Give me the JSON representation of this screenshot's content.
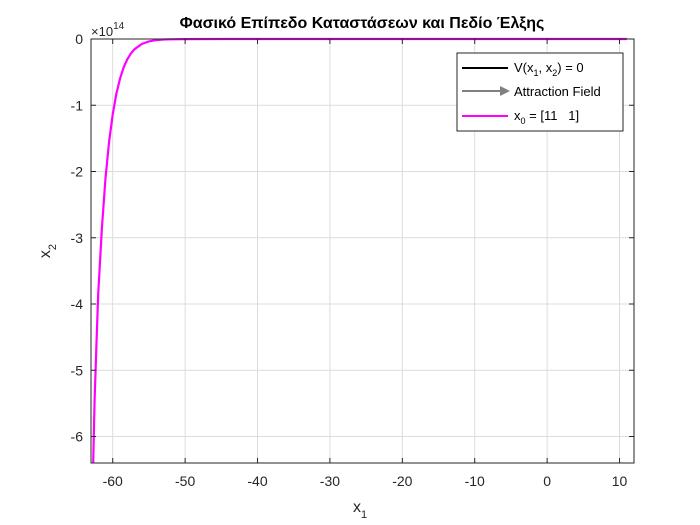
{
  "chart_data": {
    "type": "line",
    "title": "Φασικό Επίπεδο Καταστάσεων και Πεδίο Έλξης",
    "xlabel": {
      "base": "x",
      "sub": "1"
    },
    "ylabel": {
      "base": "x",
      "sub": "2"
    },
    "xlim": [
      -63,
      12
    ],
    "ylim": [
      -6.4,
      0
    ],
    "y_exponent": {
      "base": "×10",
      "power": "14"
    },
    "xticks": [
      -60,
      -50,
      -40,
      -30,
      -20,
      -10,
      0,
      10
    ],
    "xtick_labels": [
      "-60",
      "-50",
      "-40",
      "-30",
      "-20",
      "-10",
      "0",
      "10"
    ],
    "yticks": [
      -6,
      -5,
      -4,
      -3,
      -2,
      -1,
      0
    ],
    "ytick_labels": [
      "-6",
      "-5",
      "-4",
      "-3",
      "-2",
      "-1",
      "0"
    ],
    "grid": true,
    "legend_position": "top-right",
    "legend": [
      {
        "label_parts": [
          "V(x",
          "1",
          ", x",
          "2",
          ") = 0"
        ],
        "color": "#000000",
        "style": "line"
      },
      {
        "label_parts": [
          "Attraction Field"
        ],
        "color": "#808080",
        "style": "arrow"
      },
      {
        "label_parts": [
          "x",
          "0",
          " = [11   1]"
        ],
        "color": "#ff00ff",
        "style": "line"
      }
    ],
    "series": [
      {
        "name": "x0 = [11 1]",
        "color": "#ff00ff",
        "x": [
          -62.7,
          -62.5,
          -62.2,
          -62.0,
          -61.5,
          -61.0,
          -60.5,
          -60.0,
          -59.5,
          -59.0,
          -58.5,
          -58.0,
          -57.5,
          -57.0,
          -56.0,
          -55.0,
          -54.0,
          -53.0,
          -52.0,
          -50.0,
          -45.0,
          -40.0,
          -30.0,
          -20.0,
          -10.0,
          0.0,
          5.0,
          11.0
        ],
        "y": [
          -6.4,
          -5.45,
          -4.45,
          -3.85,
          -2.85,
          -2.1,
          -1.55,
          -1.14,
          -0.83,
          -0.6,
          -0.43,
          -0.31,
          -0.22,
          -0.155,
          -0.075,
          -0.036,
          -0.017,
          -0.008,
          -0.004,
          -0.001,
          0,
          0,
          0,
          0,
          0,
          0,
          0,
          0
        ]
      }
    ]
  }
}
